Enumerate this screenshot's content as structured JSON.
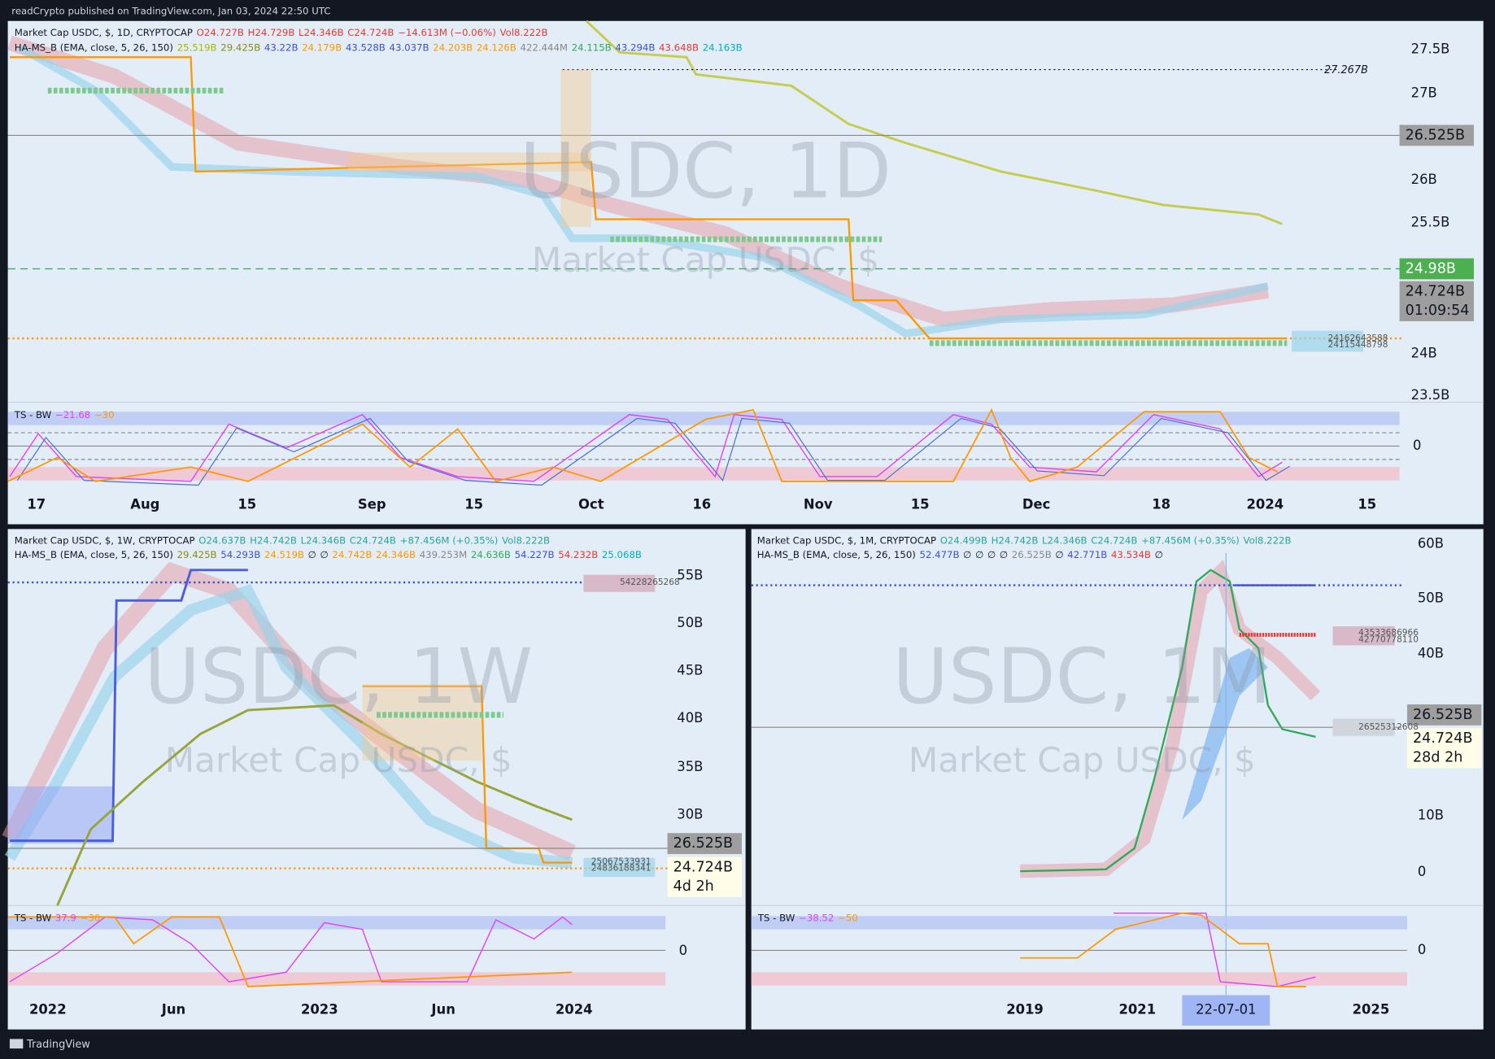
{
  "header": {
    "text": "readCrypto published on TradingView.com, Jan 03, 2024 22:50 UTC"
  },
  "panels": [
    {
      "legend": [
        [
          {
            "t": "Market Cap USDC, $, 1D, CRYPTOCAP",
            "color": "#131722"
          },
          {
            "t": "O24.727B",
            "color": "#e53935"
          },
          {
            "t": "H24.729B",
            "color": "#e53935"
          },
          {
            "t": "L24.346B",
            "color": "#e53935"
          },
          {
            "t": "C24.724B",
            "color": "#e53935"
          },
          {
            "t": "−14.613M (−0.06%)",
            "color": "#e53935"
          },
          {
            "t": "Vol8.222B",
            "color": "#e53935"
          }
        ],
        [
          {
            "t": "HA-MS_B (EMA, close, 5, 26, 150)",
            "color": "#131722"
          },
          {
            "t": "25.519B",
            "color": "#aab800"
          },
          {
            "t": "29.425B",
            "color": "#8a8a1a"
          },
          {
            "t": "43.22B",
            "color": "#3f51d0"
          },
          {
            "t": "24.179B",
            "color": "#ff9800"
          },
          {
            "t": "43.528B",
            "color": "#3f51d0"
          },
          {
            "t": "43.037B",
            "color": "#3f51d0"
          },
          {
            "t": "24.203B",
            "color": "#ff9800"
          },
          {
            "t": "24.126B",
            "color": "#ff9800"
          },
          {
            "t": "422.444M",
            "color": "#888888"
          },
          {
            "t": "24.115B",
            "color": "#2eaa5a"
          },
          {
            "t": "43.294B",
            "color": "#3f51d0"
          },
          {
            "t": "43.648B",
            "color": "#e53935"
          },
          {
            "t": "24.163B",
            "color": "#00acc1"
          }
        ]
      ],
      "watermark": {
        "symbol": "USDC, 1D",
        "name": "Market Cap USDC, $"
      },
      "price_axis": [
        "27.5B",
        "27B",
        "26B",
        "25.5B",
        "24B",
        "23.5B"
      ],
      "badges": [
        {
          "text": "26.525B"
        },
        {
          "text": "24.98B"
        },
        {
          "text": "24.724B",
          "sub": "01:09:54"
        }
      ],
      "level_labels": [
        "27.267B",
        "24162643588",
        "24115448798"
      ],
      "time_axis": [
        "17",
        "Aug",
        "15",
        "Sep",
        "15",
        "Oct",
        "16",
        "Nov",
        "15",
        "Dec",
        "18",
        "2024",
        "15"
      ],
      "indicator": {
        "legend": [
          {
            "t": "TS - BW",
            "color": "#131722"
          },
          {
            "t": "−21.68",
            "color": "#e040fb"
          },
          {
            "t": "−30",
            "color": "#ff9800"
          }
        ],
        "zero": "0"
      }
    },
    {
      "legend": [
        [
          {
            "t": "Market Cap USDC, $, 1W, CRYPTOCAP",
            "color": "#131722"
          },
          {
            "t": "O24.637B",
            "color": "#26a69a"
          },
          {
            "t": "H24.742B",
            "color": "#26a69a"
          },
          {
            "t": "L24.346B",
            "color": "#26a69a"
          },
          {
            "t": "C24.724B",
            "color": "#26a69a"
          },
          {
            "t": "+87.456M (+0.35%)",
            "color": "#26a69a"
          },
          {
            "t": "Vol8.222B",
            "color": "#26a69a"
          }
        ],
        [
          {
            "t": "HA-MS_B (EMA, close, 5, 26, 150)",
            "color": "#131722"
          },
          {
            "t": "29.425B",
            "color": "#8a8a1a"
          },
          {
            "t": "54.293B",
            "color": "#3f51d0"
          },
          {
            "t": "24.519B",
            "color": "#ff9800"
          },
          {
            "t": "∅",
            "color": "#131722"
          },
          {
            "t": "∅",
            "color": "#131722"
          },
          {
            "t": "24.742B",
            "color": "#ff9800"
          },
          {
            "t": "24.346B",
            "color": "#ff9800"
          },
          {
            "t": "439.253M",
            "color": "#888888"
          },
          {
            "t": "24.636B",
            "color": "#2eaa5a"
          },
          {
            "t": "54.227B",
            "color": "#3f51d0"
          },
          {
            "t": "54.232B",
            "color": "#e53935"
          },
          {
            "t": "25.068B",
            "color": "#00acc1"
          }
        ]
      ],
      "watermark": {
        "symbol": "USDC, 1W",
        "name": "Market Cap USDC, $"
      },
      "price_axis": [
        "55B",
        "50B",
        "45B",
        "40B",
        "35B",
        "30B"
      ],
      "badges": [
        {
          "text": "26.525B"
        },
        {
          "text": "24.724B",
          "sub": "4d 2h"
        }
      ],
      "level_labels": [
        "54228265268",
        "25067533931",
        "24836188341"
      ],
      "time_axis": [
        "2022",
        "Jun",
        "2023",
        "Jun",
        "2024"
      ],
      "indicator": {
        "legend": [
          {
            "t": "TS - BW",
            "color": "#131722"
          },
          {
            "t": "37.9",
            "color": "#e040fb"
          },
          {
            "t": "−30",
            "color": "#ff9800"
          }
        ],
        "zero": "0"
      }
    },
    {
      "legend": [
        [
          {
            "t": "Market Cap USDC, $, 1M, CRYPTOCAP",
            "color": "#131722"
          },
          {
            "t": "O24.499B",
            "color": "#26a69a"
          },
          {
            "t": "H24.742B",
            "color": "#26a69a"
          },
          {
            "t": "L24.346B",
            "color": "#26a69a"
          },
          {
            "t": "C24.724B",
            "color": "#26a69a"
          },
          {
            "t": "+87.456M (+0.35%)",
            "color": "#26a69a"
          },
          {
            "t": "Vol8.222B",
            "color": "#26a69a"
          }
        ],
        [
          {
            "t": "HA-MS_B (EMA, close, 5, 26, 150)",
            "color": "#131722"
          },
          {
            "t": "52.477B",
            "color": "#3f51d0"
          },
          {
            "t": "∅",
            "color": "#131722"
          },
          {
            "t": "∅",
            "color": "#131722"
          },
          {
            "t": "∅",
            "color": "#131722"
          },
          {
            "t": "∅",
            "color": "#131722"
          },
          {
            "t": "26.525B",
            "color": "#888888"
          },
          {
            "t": "∅",
            "color": "#131722"
          },
          {
            "t": "42.771B",
            "color": "#3f51d0"
          },
          {
            "t": "43.534B",
            "color": "#e53935"
          },
          {
            "t": "∅",
            "color": "#131722"
          }
        ]
      ],
      "watermark": {
        "symbol": "USDC, 1M",
        "name": "Market Cap USDC, $"
      },
      "price_axis": [
        "60B",
        "50B",
        "40B",
        "10B",
        "0"
      ],
      "badges": [
        {
          "text": "26.525B"
        },
        {
          "text": "24.724B",
          "sub": "28d 2h"
        }
      ],
      "level_labels": [
        "43533686966",
        "42770778110",
        "26525312608"
      ],
      "time_axis": [
        "2019",
        "2021",
        "2025"
      ],
      "highlight": "22-07-01",
      "indicator": {
        "legend": [
          {
            "t": "TS - BW",
            "color": "#131722"
          },
          {
            "t": "−38.52",
            "color": "#e040fb"
          },
          {
            "t": "−50",
            "color": "#ff9800"
          }
        ],
        "zero": "0"
      }
    }
  ],
  "footer": "TradingView"
}
